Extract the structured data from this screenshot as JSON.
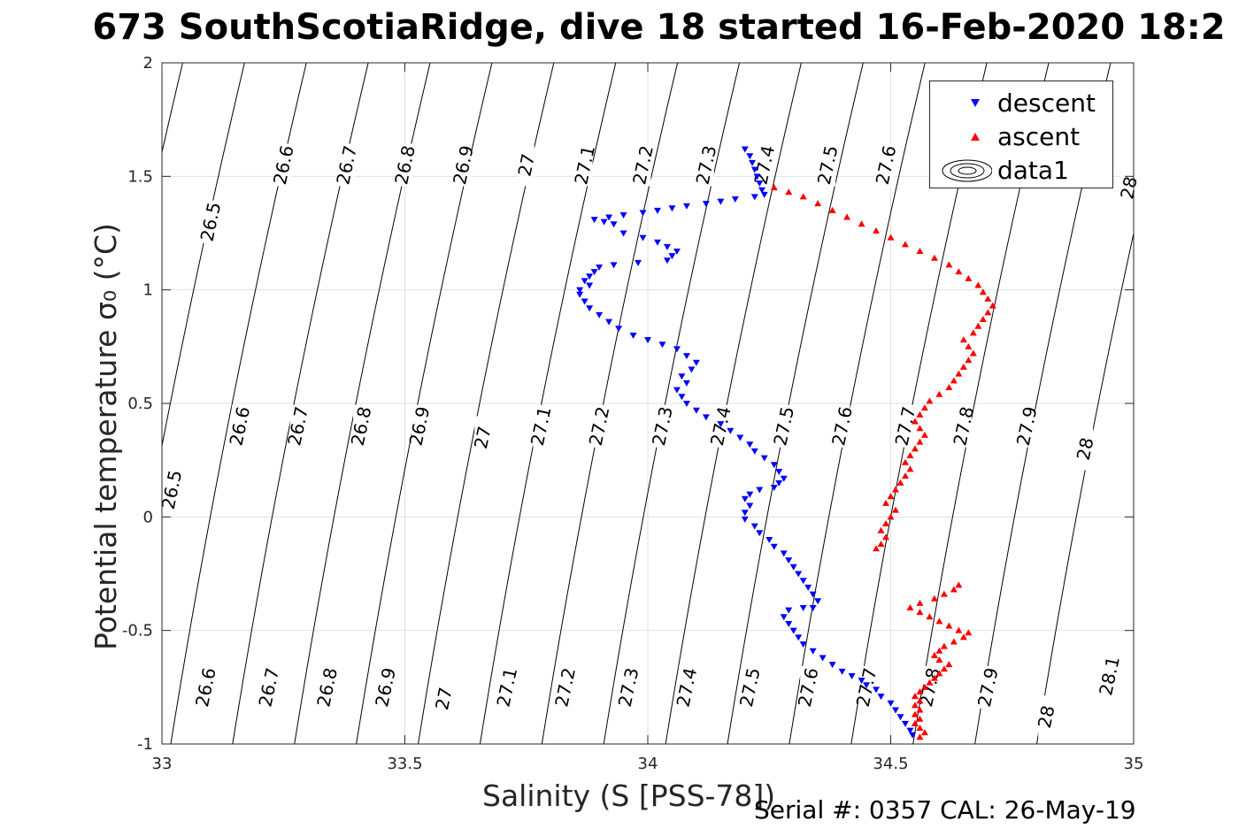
{
  "title": "673 SouthScotiaRidge, dive 18 started 16-Feb-2020 18:2",
  "serial_text": "Serial #: 0357  CAL: 26-May-19",
  "colors": {
    "descent": "#0000ff",
    "ascent": "#ff0000",
    "contour": "#000000",
    "grid": "#e0e0e0"
  },
  "chart_data": {
    "type": "scatter",
    "title": "673 SouthScotiaRidge, dive 18 started 16-Feb-2020 18:2",
    "xlabel": "Salinity (S [PSS-78])",
    "ylabel": "Potential temperature σ₀ (°C)",
    "xlim": [
      33,
      35
    ],
    "ylim": [
      -1,
      2
    ],
    "xticks": [
      "33",
      "33.5",
      "34",
      "34.5",
      "35"
    ],
    "yticks": [
      "-1",
      "-0.5",
      "0",
      "0.5",
      "1",
      "1.5",
      "2"
    ],
    "grid": true,
    "legend_position": "top-right",
    "legend": [
      "descent",
      "ascent",
      "data1"
    ],
    "contours": [
      {
        "level": 26.5,
        "label": "26.5",
        "label_points": [
          [
            33.1,
            1.3
          ],
          [
            33.02,
            0.12
          ]
        ]
      },
      {
        "level": 26.6,
        "label": "26.6",
        "label_points": [
          [
            33.25,
            1.55
          ],
          [
            33.16,
            0.4
          ],
          [
            33.09,
            -0.75
          ]
        ]
      },
      {
        "level": 26.7,
        "label": "26.7",
        "label_points": [
          [
            33.38,
            1.55
          ],
          [
            33.28,
            0.4
          ],
          [
            33.22,
            -0.75
          ]
        ]
      },
      {
        "level": 26.8,
        "label": "26.8",
        "label_points": [
          [
            33.5,
            1.55
          ],
          [
            33.41,
            0.4
          ],
          [
            33.34,
            -0.75
          ]
        ]
      },
      {
        "level": 26.9,
        "label": "26.9",
        "label_points": [
          [
            33.62,
            1.55
          ],
          [
            33.53,
            0.4
          ],
          [
            33.46,
            -0.75
          ]
        ]
      },
      {
        "level": 27.0,
        "label": "27",
        "label_points": [
          [
            33.75,
            1.55
          ],
          [
            33.66,
            0.35
          ],
          [
            33.58,
            -0.8
          ]
        ]
      },
      {
        "level": 27.1,
        "label": "27.1",
        "label_points": [
          [
            33.87,
            1.55
          ],
          [
            33.78,
            0.4
          ],
          [
            33.71,
            -0.75
          ]
        ]
      },
      {
        "level": 27.2,
        "label": "27.2",
        "label_points": [
          [
            33.99,
            1.55
          ],
          [
            33.9,
            0.4
          ],
          [
            33.83,
            -0.75
          ]
        ]
      },
      {
        "level": 27.3,
        "label": "27.3",
        "label_points": [
          [
            34.12,
            1.55
          ],
          [
            34.03,
            0.4
          ],
          [
            33.96,
            -0.75
          ]
        ]
      },
      {
        "level": 27.4,
        "label": "27.4",
        "label_points": [
          [
            34.24,
            1.55
          ],
          [
            34.15,
            0.4
          ],
          [
            34.08,
            -0.75
          ]
        ]
      },
      {
        "level": 27.5,
        "label": "27.5",
        "label_points": [
          [
            34.37,
            1.55
          ],
          [
            34.28,
            0.4
          ],
          [
            34.21,
            -0.75
          ]
        ]
      },
      {
        "level": 27.6,
        "label": "27.6",
        "label_points": [
          [
            34.49,
            1.55
          ],
          [
            34.4,
            0.4
          ],
          [
            34.33,
            -0.75
          ]
        ]
      },
      {
        "level": 27.7,
        "label": "27.7",
        "label_points": [
          [
            34.53,
            0.4
          ],
          [
            34.45,
            -0.75
          ]
        ]
      },
      {
        "level": 27.8,
        "label": "27.8",
        "label_points": [
          [
            34.65,
            0.4
          ],
          [
            34.58,
            -0.75
          ]
        ]
      },
      {
        "level": 27.9,
        "label": "27.9",
        "label_points": [
          [
            34.78,
            0.4
          ],
          [
            34.7,
            -0.75
          ]
        ]
      },
      {
        "level": 28.0,
        "label": "28",
        "label_points": [
          [
            34.99,
            1.45
          ],
          [
            34.9,
            0.3
          ],
          [
            34.82,
            -0.88
          ]
        ]
      },
      {
        "level": 28.1,
        "label": "28.1",
        "label_points": [
          [
            34.95,
            -0.7
          ]
        ]
      }
    ],
    "series": [
      {
        "name": "descent",
        "marker": "triangle-down",
        "color": "#0000ff",
        "points": [
          [
            34.2,
            1.62
          ],
          [
            34.21,
            1.59
          ],
          [
            34.215,
            1.56
          ],
          [
            34.22,
            1.53
          ],
          [
            34.225,
            1.5
          ],
          [
            34.23,
            1.47
          ],
          [
            34.235,
            1.44
          ],
          [
            34.24,
            1.42
          ],
          [
            34.22,
            1.41
          ],
          [
            34.18,
            1.4
          ],
          [
            34.15,
            1.39
          ],
          [
            34.12,
            1.38
          ],
          [
            34.08,
            1.37
          ],
          [
            34.05,
            1.36
          ],
          [
            34.02,
            1.35
          ],
          [
            33.99,
            1.34
          ],
          [
            33.95,
            1.33
          ],
          [
            33.92,
            1.32
          ],
          [
            33.89,
            1.31
          ],
          [
            33.91,
            1.3
          ],
          [
            33.93,
            1.29
          ],
          [
            33.95,
            1.25
          ],
          [
            33.99,
            1.23
          ],
          [
            34.02,
            1.21
          ],
          [
            34.04,
            1.19
          ],
          [
            34.06,
            1.17
          ],
          [
            34.05,
            1.15
          ],
          [
            34.04,
            1.13
          ],
          [
            33.98,
            1.12
          ],
          [
            33.93,
            1.11
          ],
          [
            33.9,
            1.1
          ],
          [
            33.89,
            1.08
          ],
          [
            33.88,
            1.06
          ],
          [
            33.87,
            1.04
          ],
          [
            33.88,
            1.02
          ],
          [
            33.86,
            1.0
          ],
          [
            33.86,
            0.98
          ],
          [
            33.87,
            0.95
          ],
          [
            33.88,
            0.92
          ],
          [
            33.9,
            0.89
          ],
          [
            33.92,
            0.86
          ],
          [
            33.94,
            0.83
          ],
          [
            33.97,
            0.8
          ],
          [
            34.0,
            0.78
          ],
          [
            34.03,
            0.76
          ],
          [
            34.06,
            0.74
          ],
          [
            34.08,
            0.71
          ],
          [
            34.1,
            0.68
          ],
          [
            34.09,
            0.65
          ],
          [
            34.07,
            0.62
          ],
          [
            34.08,
            0.59
          ],
          [
            34.06,
            0.56
          ],
          [
            34.07,
            0.53
          ],
          [
            34.08,
            0.5
          ],
          [
            34.1,
            0.47
          ],
          [
            34.12,
            0.44
          ],
          [
            34.15,
            0.41
          ],
          [
            34.17,
            0.38
          ],
          [
            34.19,
            0.35
          ],
          [
            34.21,
            0.32
          ],
          [
            34.22,
            0.29
          ],
          [
            34.24,
            0.26
          ],
          [
            34.26,
            0.23
          ],
          [
            34.27,
            0.2
          ],
          [
            34.28,
            0.17
          ],
          [
            34.27,
            0.15
          ],
          [
            34.26,
            0.13
          ],
          [
            34.23,
            0.12
          ],
          [
            34.21,
            0.1
          ],
          [
            34.2,
            0.08
          ],
          [
            34.21,
            0.05
          ],
          [
            34.2,
            0.02
          ],
          [
            34.2,
            -0.01
          ],
          [
            34.22,
            -0.04
          ],
          [
            34.23,
            -0.07
          ],
          [
            34.25,
            -0.1
          ],
          [
            34.26,
            -0.13
          ],
          [
            34.28,
            -0.16
          ],
          [
            34.29,
            -0.19
          ],
          [
            34.3,
            -0.22
          ],
          [
            34.31,
            -0.25
          ],
          [
            34.32,
            -0.28
          ],
          [
            34.33,
            -0.31
          ],
          [
            34.34,
            -0.34
          ],
          [
            34.35,
            -0.37
          ],
          [
            34.34,
            -0.4
          ],
          [
            34.32,
            -0.4
          ],
          [
            34.29,
            -0.41
          ],
          [
            34.28,
            -0.44
          ],
          [
            34.29,
            -0.47
          ],
          [
            34.3,
            -0.5
          ],
          [
            34.31,
            -0.53
          ],
          [
            34.32,
            -0.56
          ],
          [
            34.34,
            -0.59
          ],
          [
            34.36,
            -0.62
          ],
          [
            34.38,
            -0.65
          ],
          [
            34.4,
            -0.68
          ],
          [
            34.42,
            -0.7
          ],
          [
            34.44,
            -0.72
          ],
          [
            34.45,
            -0.74
          ],
          [
            34.47,
            -0.76
          ],
          [
            34.48,
            -0.79
          ],
          [
            34.5,
            -0.82
          ],
          [
            34.51,
            -0.85
          ],
          [
            34.52,
            -0.88
          ],
          [
            34.53,
            -0.91
          ],
          [
            34.54,
            -0.94
          ],
          [
            34.545,
            -0.96
          ]
        ]
      },
      {
        "name": "ascent",
        "marker": "triangle-up",
        "color": "#ff0000",
        "points": [
          [
            34.56,
            -0.97
          ],
          [
            34.57,
            -0.95
          ],
          [
            34.56,
            -0.93
          ],
          [
            34.55,
            -0.91
          ],
          [
            34.56,
            -0.89
          ],
          [
            34.55,
            -0.87
          ],
          [
            34.56,
            -0.85
          ],
          [
            34.55,
            -0.83
          ],
          [
            34.56,
            -0.81
          ],
          [
            34.55,
            -0.79
          ],
          [
            34.56,
            -0.77
          ],
          [
            34.57,
            -0.75
          ],
          [
            34.58,
            -0.73
          ],
          [
            34.59,
            -0.71
          ],
          [
            34.6,
            -0.69
          ],
          [
            34.61,
            -0.67
          ],
          [
            34.62,
            -0.65
          ],
          [
            34.6,
            -0.63
          ],
          [
            34.59,
            -0.61
          ],
          [
            34.6,
            -0.59
          ],
          [
            34.61,
            -0.57
          ],
          [
            34.63,
            -0.55
          ],
          [
            34.65,
            -0.53
          ],
          [
            34.66,
            -0.51
          ],
          [
            34.64,
            -0.5
          ],
          [
            34.62,
            -0.48
          ],
          [
            34.6,
            -0.46
          ],
          [
            34.58,
            -0.44
          ],
          [
            34.56,
            -0.42
          ],
          [
            34.54,
            -0.4
          ],
          [
            34.56,
            -0.38
          ],
          [
            34.59,
            -0.36
          ],
          [
            34.61,
            -0.34
          ],
          [
            34.63,
            -0.32
          ],
          [
            34.64,
            -0.3
          ],
          [
            34.47,
            -0.14
          ],
          [
            34.48,
            -0.12
          ],
          [
            34.49,
            -0.09
          ],
          [
            34.48,
            -0.06
          ],
          [
            34.49,
            -0.03
          ],
          [
            34.5,
            0.0
          ],
          [
            34.51,
            0.03
          ],
          [
            34.49,
            0.06
          ],
          [
            34.5,
            0.09
          ],
          [
            34.51,
            0.12
          ],
          [
            34.52,
            0.15
          ],
          [
            34.53,
            0.18
          ],
          [
            34.54,
            0.21
          ],
          [
            34.53,
            0.24
          ],
          [
            34.54,
            0.27
          ],
          [
            34.55,
            0.3
          ],
          [
            34.56,
            0.33
          ],
          [
            34.57,
            0.36
          ],
          [
            34.56,
            0.39
          ],
          [
            34.55,
            0.42
          ],
          [
            34.56,
            0.45
          ],
          [
            34.57,
            0.48
          ],
          [
            34.58,
            0.51
          ],
          [
            34.6,
            0.54
          ],
          [
            34.62,
            0.57
          ],
          [
            34.63,
            0.6
          ],
          [
            34.64,
            0.63
          ],
          [
            34.65,
            0.66
          ],
          [
            34.66,
            0.69
          ],
          [
            34.67,
            0.72
          ],
          [
            34.66,
            0.75
          ],
          [
            34.65,
            0.78
          ],
          [
            34.67,
            0.81
          ],
          [
            34.68,
            0.84
          ],
          [
            34.69,
            0.87
          ],
          [
            34.7,
            0.9
          ],
          [
            34.71,
            0.93
          ],
          [
            34.7,
            0.96
          ],
          [
            34.69,
            0.99
          ],
          [
            34.68,
            1.02
          ],
          [
            34.66,
            1.05
          ],
          [
            34.64,
            1.08
          ],
          [
            34.62,
            1.11
          ],
          [
            34.59,
            1.14
          ],
          [
            34.56,
            1.17
          ],
          [
            34.53,
            1.2
          ],
          [
            34.5,
            1.23
          ],
          [
            34.47,
            1.26
          ],
          [
            34.44,
            1.29
          ],
          [
            34.41,
            1.32
          ],
          [
            34.38,
            1.35
          ],
          [
            34.35,
            1.38
          ],
          [
            34.32,
            1.41
          ],
          [
            34.29,
            1.43
          ],
          [
            34.26,
            1.45
          ]
        ]
      }
    ]
  }
}
